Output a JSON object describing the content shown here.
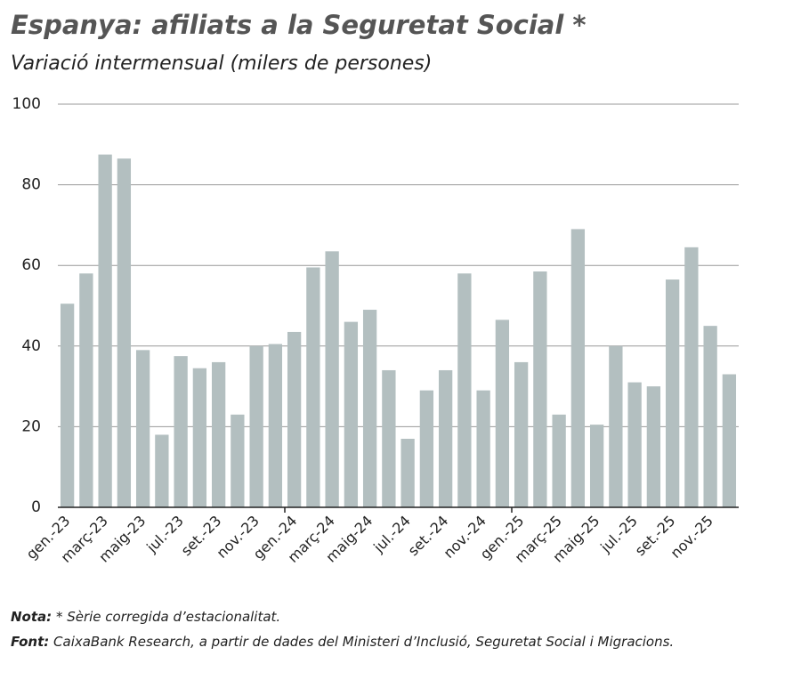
{
  "chart_data": {
    "type": "bar",
    "title": "Espanya: afiliats a la Seguretat Social *",
    "subtitle": "Variació intermensual (milers de persones)",
    "categories": [
      "gen.-23",
      null,
      "març-23",
      null,
      "maig-23",
      null,
      "jul.-23",
      null,
      "set.-23",
      null,
      "nov.-23",
      null,
      "gen.-24",
      null,
      "març-24",
      null,
      "maig-24",
      null,
      "jul.-24",
      null,
      "set.-24",
      null,
      "nov.-24",
      null,
      "gen.-25",
      null,
      "març-25",
      null,
      "maig-25",
      null,
      "jul.-25",
      null,
      "set.-25",
      null,
      "nov.-25",
      null
    ],
    "values": [
      50.5,
      58,
      87.5,
      86.5,
      39,
      18,
      37.5,
      34.5,
      36,
      23,
      40,
      40.5,
      43.5,
      59.5,
      63.5,
      46,
      49,
      34,
      17,
      29,
      34,
      58,
      29,
      46.5,
      36,
      58.5,
      23,
      69,
      20.5,
      40,
      31,
      30,
      56.5,
      64.5,
      45,
      33
    ],
    "color": "#b3bfc0",
    "ylim": [
      0,
      100
    ],
    "yticks": [
      0,
      20,
      40,
      60,
      80,
      100
    ],
    "grid": true
  },
  "notes": [
    {
      "label": "Nota:",
      "text": "* Sèrie corregida d’estacionalitat."
    },
    {
      "label": "Font:",
      "text": "CaixaBank Research, a partir de dades del Ministeri d’Inclusió, Seguretat Social i Migracions."
    }
  ]
}
